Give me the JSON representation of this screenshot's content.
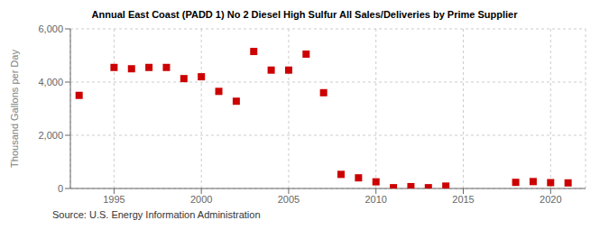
{
  "chart_data": {
    "type": "scatter",
    "title": "Annual East Coast (PADD 1) No 2 Diesel High Sulfur All Sales/Deliveries by Prime Supplier",
    "ylabel": "Thousand Gallons per Day",
    "annotation": "Source: U.S. Energy Information Administration",
    "x": [
      1993,
      1995,
      1996,
      1997,
      1998,
      1999,
      2000,
      2001,
      2002,
      2003,
      2004,
      2005,
      2006,
      2007,
      2008,
      2009,
      2010,
      2011,
      2012,
      2013,
      2014,
      2018,
      2019,
      2020,
      2021
    ],
    "values": [
      3500,
      4550,
      4500,
      4550,
      4550,
      4130,
      4200,
      3650,
      3280,
      5150,
      4450,
      4450,
      5050,
      3600,
      530,
      400,
      250,
      30,
      70,
      30,
      90,
      230,
      260,
      220,
      210
    ],
    "color": "#cc0000",
    "marker": "square",
    "xlim": [
      1992.5,
      2022
    ],
    "ylim": [
      0,
      6000
    ],
    "xticks": [
      1995,
      2000,
      2005,
      2010,
      2015,
      2020
    ],
    "yticks": [
      0,
      {
        "value": 2000,
        "label": "2,000"
      },
      {
        "value": 4000,
        "label": "4,000"
      },
      {
        "value": 6000,
        "label": "6,000"
      }
    ],
    "grid": true
  }
}
